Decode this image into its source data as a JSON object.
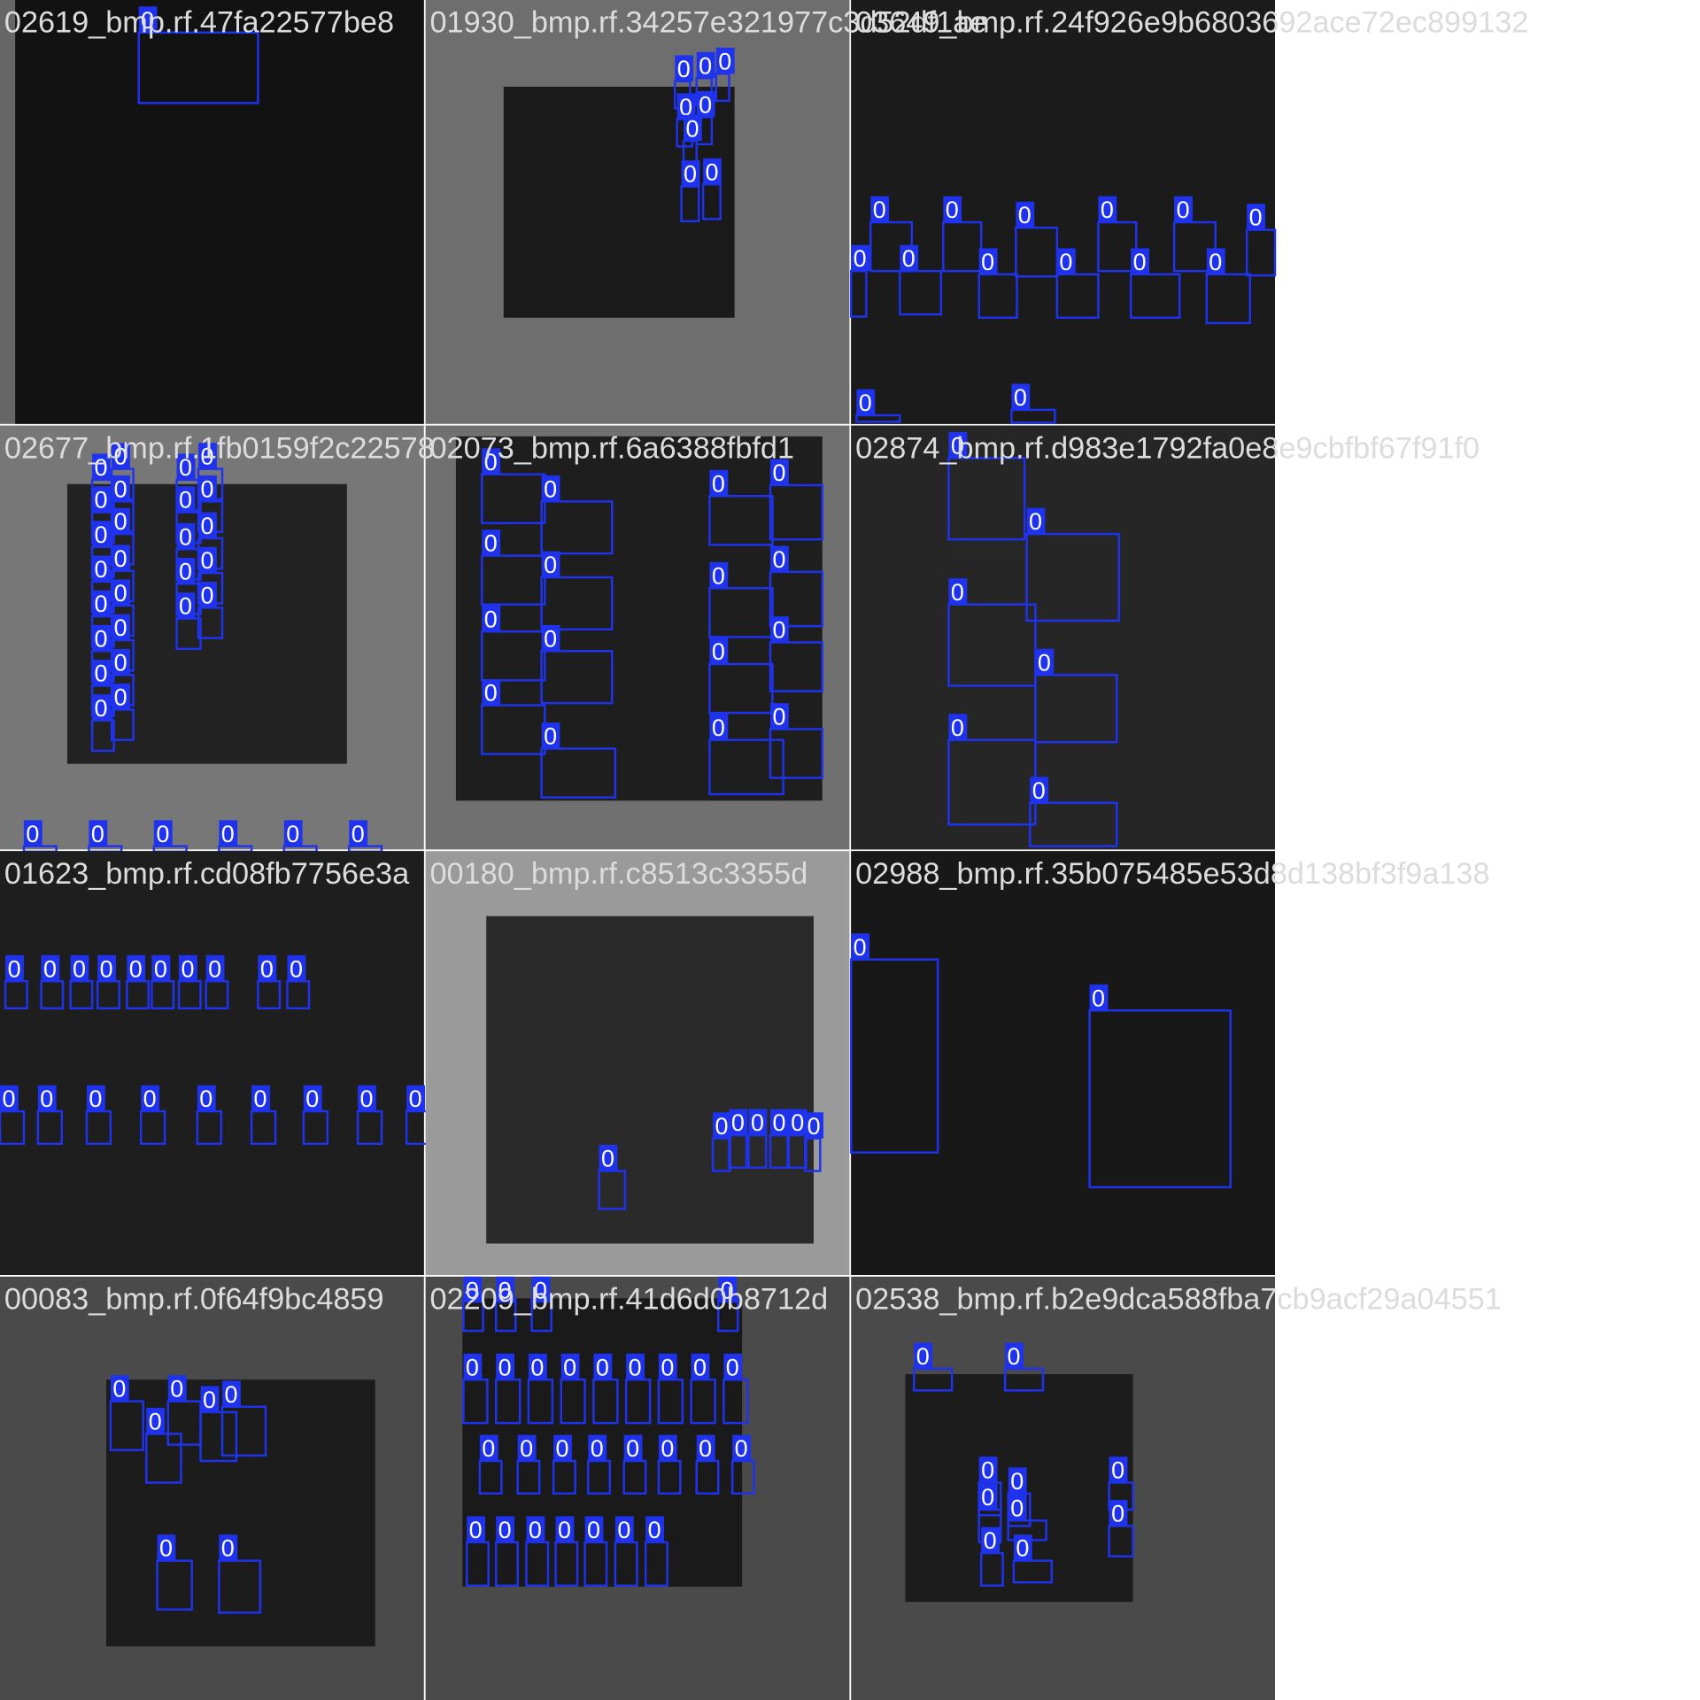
{
  "tiles": [
    {
      "filename": "02619_bmp.rf.47fa22577be8",
      "labels": [
        "0"
      ]
    },
    {
      "filename": "01930_bmp.rf.34257e321977c3d52df1ae",
      "labels": [
        "0",
        "0",
        "0",
        "0",
        "0",
        "0",
        "0",
        "0"
      ]
    },
    {
      "filename": "03649_bmp.rf.24f926e9b6803692ace72ec899132",
      "labels": [
        "0",
        "0",
        "0",
        "0",
        "0",
        "0",
        "0",
        "0",
        "0",
        "0",
        "0",
        "0",
        "0",
        "0"
      ]
    },
    {
      "filename": "02677_bmp.rf.1fb0159f2c22578",
      "labels": [
        "0",
        "0",
        "0",
        "0",
        "0",
        "0",
        "0",
        "0",
        "0",
        "0",
        "0",
        "0",
        "0",
        "0",
        "0",
        "0",
        "0",
        "0",
        "0",
        "0",
        "0",
        "0",
        "0",
        "0",
        "0",
        "0",
        "0",
        "0",
        "0",
        "0",
        "0",
        "0"
      ]
    },
    {
      "filename": "02073_bmp.rf.6a6388fbfd1",
      "labels": [
        "0",
        "0",
        "0",
        "0",
        "0",
        "0",
        "0",
        "0",
        "0",
        "0",
        "0",
        "0",
        "0",
        "0",
        "0",
        "0"
      ]
    },
    {
      "filename": "02874_bmp.rf.d983e1792fa0e8e9cbfbf67f91f0",
      "labels": [
        "0",
        "0",
        "0",
        "0",
        "0",
        "0"
      ]
    },
    {
      "filename": "01623_bmp.rf.cd08fb7756e3a",
      "labels": [
        "0",
        "0",
        "0",
        "0",
        "0",
        "0",
        "0",
        "0",
        "0",
        "0",
        "0",
        "0",
        "0",
        "0",
        "0",
        "0",
        "0",
        "0",
        "0"
      ]
    },
    {
      "filename": "00180_bmp.rf.c8513c3355d",
      "labels": [
        "0",
        "0",
        "0",
        "0",
        "0",
        "0",
        "0"
      ]
    },
    {
      "filename": "02988_bmp.rf.35b075485e53d8d138bf3f9a138",
      "labels": [
        "0",
        "0"
      ]
    },
    {
      "filename": "00083_bmp.rf.0f64f9bc4859",
      "labels": [
        "0",
        "0",
        "0",
        "0",
        "0",
        "0",
        "0"
      ]
    },
    {
      "filename": "02209_bmp.rf.41d6d0b8712d",
      "labels": [
        "0",
        "0",
        "0",
        "0",
        "0",
        "0",
        "0",
        "0",
        "0",
        "0",
        "0",
        "0",
        "0",
        "0",
        "0",
        "0",
        "0",
        "0",
        "0",
        "0",
        "0",
        "0",
        "0",
        "0",
        "0",
        "0",
        "0",
        "0"
      ]
    },
    {
      "filename": "02538_bmp.rf.b2e9dca588fba7cb9acf29a04551",
      "labels": [
        "0",
        "0",
        "0",
        "0",
        "0",
        "0",
        "0",
        "0",
        "0",
        "0"
      ]
    }
  ]
}
